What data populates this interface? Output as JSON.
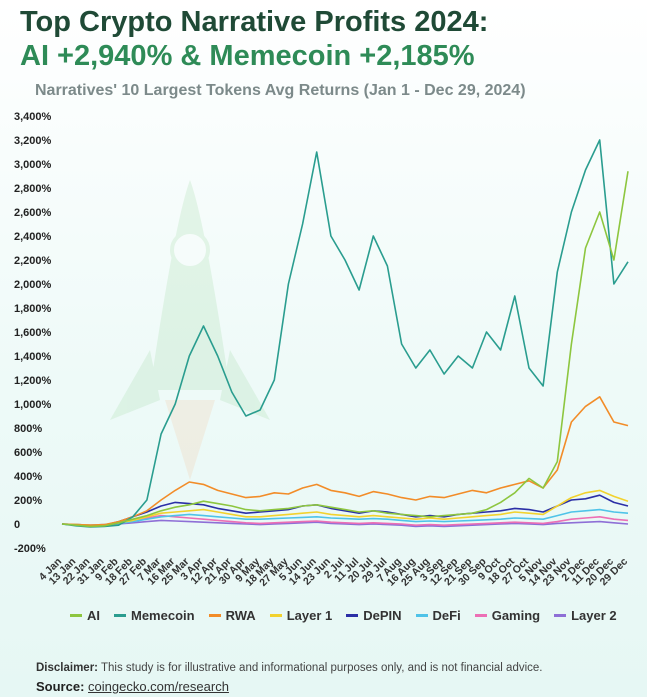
{
  "header": {
    "title_line1": "Top Crypto Narrative Profits 2024:",
    "title_line2": "AI +2,940% & Memecoin +2,185%",
    "subtitle": "Narratives' 10 Largest Tokens Avg Returns (Jan 1 - Dec 29, 2024)"
  },
  "footer": {
    "disclaimer_label": "Disclaimer:",
    "disclaimer_text": " This study is for illustrative and informational purposes only, and is not financial advice.",
    "source_label": "Source:",
    "source_link": "coingecko.com/research"
  },
  "colors": {
    "AI": "#8dc63f",
    "Memecoin": "#2a9d8f",
    "RWA": "#f28c28",
    "Layer 1": "#f2d22e",
    "DePIN": "#2b2fa6",
    "DeFi": "#4fc3e8",
    "Gaming": "#ec6fb5",
    "Layer 2": "#8e6fd6"
  },
  "chart_data": {
    "type": "line",
    "title": "Top Crypto Narrative Profits 2024:",
    "subtitle": "Narratives' 10 Largest Tokens Avg Returns (Jan 1 - Dec 29, 2024)",
    "xlabel": "",
    "ylabel": "",
    "ylim": [
      -200,
      3400
    ],
    "y_ticks": [
      -200,
      0,
      200,
      400,
      600,
      800,
      1000,
      1200,
      1400,
      1600,
      1800,
      2000,
      2200,
      2400,
      2600,
      2800,
      3000,
      3200,
      3400
    ],
    "y_tick_labels": [
      "-200%",
      "0",
      "200%",
      "400%",
      "600%",
      "800%",
      "1,000%",
      "1,200%",
      "1,400%",
      "1,600%",
      "1,800%",
      "2,000%",
      "2,200%",
      "2,400%",
      "2,600%",
      "2,800%",
      "3,000%",
      "3,200%",
      "3,400%"
    ],
    "x_tick_labels": [
      "4 Jan",
      "13 Jan",
      "22 Jan",
      "31 Jan",
      "9 Feb",
      "18 Feb",
      "27 Feb",
      "7 Mar",
      "16 Mar",
      "25 Mar",
      "3 Apr",
      "12 Apr",
      "21 Apr",
      "30 Apr",
      "9 May",
      "18 May",
      "27 May",
      "5 Jun",
      "14 Jun",
      "23 Jun",
      "2 Jul",
      "11 Jul",
      "20 Jul",
      "29 Jul",
      "7 Aug",
      "16 Aug",
      "25 Aug",
      "3 Sep",
      "12 Sep",
      "21 Sep",
      "30 Sep",
      "9 Oct",
      "18 Oct",
      "27 Oct",
      "5 Nov",
      "14 Nov",
      "23 Nov",
      "2 Dec",
      "11 Dec",
      "20 Dec",
      "29 Dec"
    ],
    "grid": false,
    "legend_position": "bottom",
    "series": [
      {
        "name": "AI",
        "values": [
          0,
          -10,
          -20,
          -15,
          10,
          40,
          70,
          110,
          140,
          160,
          190,
          170,
          150,
          120,
          110,
          120,
          130,
          150,
          160,
          140,
          120,
          100,
          110,
          90,
          80,
          70,
          60,
          70,
          80,
          90,
          120,
          180,
          260,
          380,
          300,
          520,
          1500,
          2300,
          2600,
          2200,
          2940
        ]
      },
      {
        "name": "Memecoin",
        "values": [
          0,
          -15,
          -25,
          -20,
          -10,
          60,
          200,
          750,
          1000,
          1400,
          1650,
          1400,
          1100,
          900,
          950,
          1200,
          2000,
          2500,
          3100,
          2400,
          2200,
          1950,
          2400,
          2150,
          1500,
          1300,
          1450,
          1250,
          1400,
          1300,
          1600,
          1450,
          1900,
          1300,
          1150,
          2100,
          2600,
          2950,
          3200,
          2000,
          2185
        ]
      },
      {
        "name": "RWA",
        "values": [
          0,
          -5,
          -10,
          -5,
          20,
          60,
          110,
          200,
          280,
          350,
          330,
          280,
          250,
          220,
          230,
          260,
          250,
          300,
          330,
          280,
          260,
          230,
          270,
          250,
          220,
          200,
          230,
          220,
          250,
          280,
          260,
          300,
          330,
          360,
          300,
          450,
          850,
          980,
          1060,
          850,
          820
        ]
      },
      {
        "name": "Layer 1",
        "values": [
          0,
          -5,
          -10,
          -8,
          10,
          30,
          60,
          90,
          100,
          110,
          120,
          100,
          80,
          60,
          60,
          70,
          80,
          90,
          100,
          80,
          70,
          60,
          70,
          60,
          50,
          40,
          50,
          40,
          50,
          60,
          70,
          80,
          100,
          90,
          80,
          150,
          220,
          260,
          280,
          230,
          190
        ]
      },
      {
        "name": "DePIN",
        "values": [
          0,
          -10,
          -15,
          -10,
          20,
          60,
          100,
          150,
          180,
          170,
          160,
          130,
          110,
          90,
          100,
          110,
          120,
          150,
          160,
          130,
          110,
          90,
          110,
          100,
          80,
          60,
          70,
          60,
          80,
          90,
          100,
          110,
          130,
          120,
          100,
          150,
          200,
          210,
          240,
          180,
          150
        ]
      },
      {
        "name": "DeFi",
        "values": [
          0,
          -5,
          -10,
          -5,
          5,
          20,
          40,
          60,
          70,
          80,
          70,
          60,
          50,
          40,
          40,
          45,
          50,
          55,
          60,
          50,
          45,
          40,
          45,
          40,
          30,
          20,
          25,
          20,
          25,
          30,
          35,
          40,
          50,
          45,
          40,
          70,
          100,
          110,
          120,
          100,
          90
        ]
      },
      {
        "name": "Gaming",
        "values": [
          0,
          -5,
          -10,
          -5,
          10,
          30,
          50,
          70,
          60,
          50,
          40,
          30,
          20,
          10,
          5,
          10,
          15,
          20,
          25,
          15,
          10,
          5,
          10,
          5,
          0,
          -10,
          -5,
          -10,
          -5,
          0,
          5,
          10,
          15,
          10,
          5,
          20,
          40,
          50,
          60,
          40,
          30
        ]
      },
      {
        "name": "Layer 2",
        "values": [
          0,
          -5,
          -10,
          -8,
          0,
          10,
          20,
          30,
          25,
          20,
          15,
          10,
          5,
          0,
          -5,
          0,
          5,
          10,
          15,
          5,
          0,
          -5,
          0,
          -5,
          -10,
          -20,
          -15,
          -20,
          -15,
          -10,
          -5,
          0,
          5,
          0,
          -5,
          5,
          10,
          15,
          20,
          10,
          0
        ]
      }
    ]
  }
}
